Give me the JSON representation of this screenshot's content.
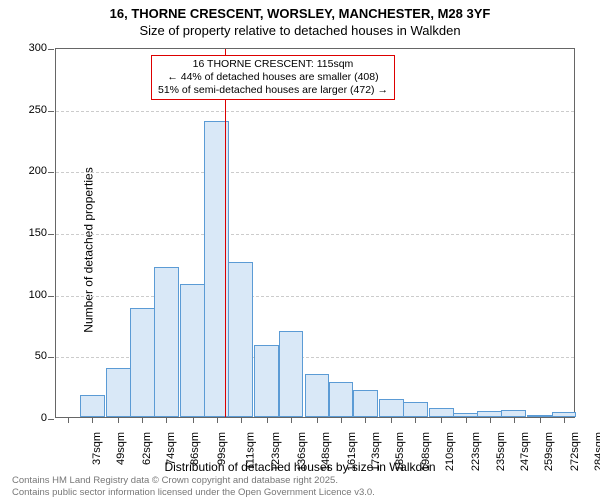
{
  "title_line1": "16, THORNE CRESCENT, WORSLEY, MANCHESTER, M28 3YF",
  "title_line2": "Size of property relative to detached houses in Walkden",
  "y_axis_title": "Number of detached properties",
  "x_axis_title": "Distribution of detached houses by size in Walkden",
  "footer_line1": "Contains HM Land Registry data © Crown copyright and database right 2025.",
  "footer_line2": "Contains public sector information licensed under the Open Government Licence v3.0.",
  "annotation": {
    "line1": "16 THORNE CRESCENT: 115sqm",
    "line2": "← 44% of detached houses are smaller (408)",
    "line3": "51% of semi-detached houses are larger (472) →"
  },
  "chart": {
    "type": "histogram",
    "background_color": "#ffffff",
    "bar_fill_color": "#d9e8f7",
    "bar_border_color": "#5b9bd5",
    "grid_color": "#cccccc",
    "axis_color": "#666666",
    "ref_line_color": "#dd0000",
    "ref_line_x": 115,
    "title_fontsize": 13,
    "label_fontsize": 11,
    "axis_title_fontsize": 12,
    "footer_fontsize": 9.5,
    "footer_color": "#777777",
    "xlim": [
      31,
      290
    ],
    "ylim": [
      0,
      300
    ],
    "ytick_step": 50,
    "x_ticks": [
      37,
      49,
      62,
      74,
      86,
      99,
      111,
      123,
      136,
      148,
      161,
      173,
      185,
      198,
      210,
      223,
      235,
      247,
      259,
      272,
      284
    ],
    "x_tick_suffix": "sqm",
    "bars": [
      {
        "x": 37,
        "value": 0
      },
      {
        "x": 49,
        "value": 18
      },
      {
        "x": 62,
        "value": 40
      },
      {
        "x": 74,
        "value": 88
      },
      {
        "x": 86,
        "value": 122
      },
      {
        "x": 99,
        "value": 108
      },
      {
        "x": 111,
        "value": 240
      },
      {
        "x": 123,
        "value": 126
      },
      {
        "x": 136,
        "value": 58
      },
      {
        "x": 148,
        "value": 70
      },
      {
        "x": 161,
        "value": 35
      },
      {
        "x": 173,
        "value": 28
      },
      {
        "x": 185,
        "value": 22
      },
      {
        "x": 198,
        "value": 15
      },
      {
        "x": 210,
        "value": 12
      },
      {
        "x": 223,
        "value": 7
      },
      {
        "x": 235,
        "value": 3
      },
      {
        "x": 247,
        "value": 5
      },
      {
        "x": 259,
        "value": 6
      },
      {
        "x": 272,
        "value": 2
      },
      {
        "x": 284,
        "value": 4
      }
    ]
  }
}
